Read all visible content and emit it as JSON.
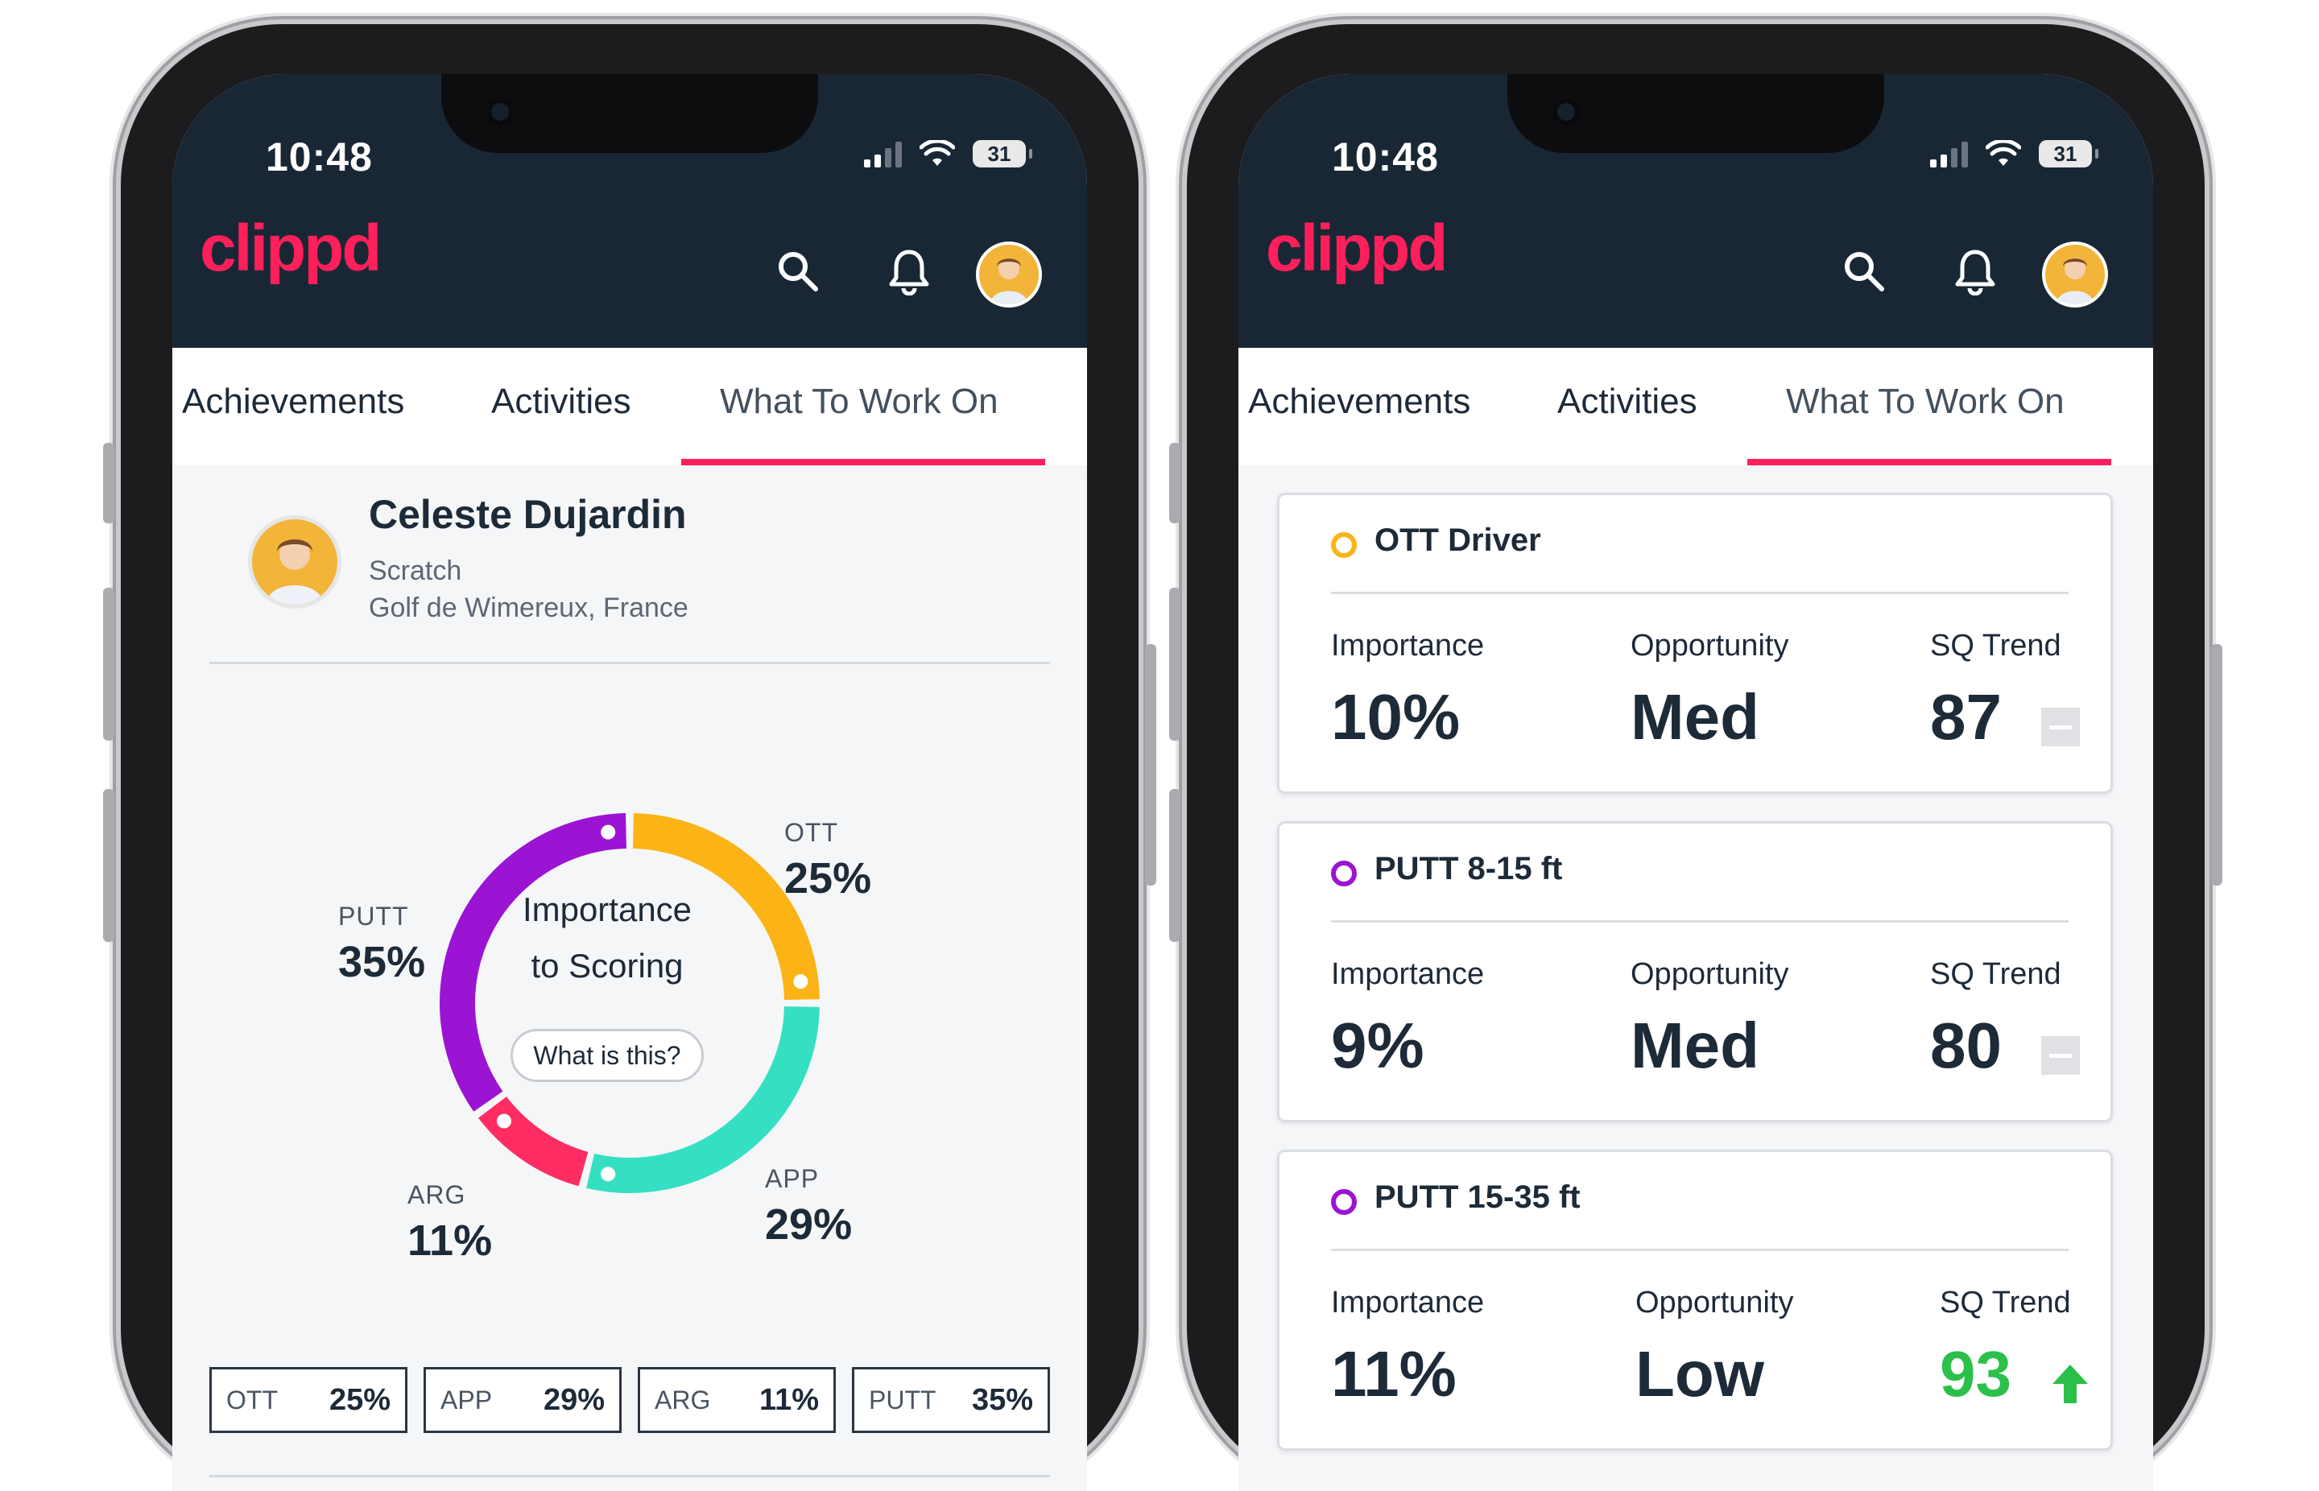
{
  "status_bar": {
    "time": "10:48",
    "battery": "31"
  },
  "app": {
    "logo": "clippd",
    "icons": {
      "search": "search-icon",
      "notifications": "bell-icon",
      "profile": "avatar"
    }
  },
  "tabs": [
    {
      "label": "Achievements"
    },
    {
      "label": "Activities"
    },
    {
      "label": "What To Work On",
      "active": true
    }
  ],
  "accent_color": "#ff1f5b",
  "profile": {
    "name": "Celeste Dujardin",
    "handicap": "Scratch",
    "club": "Golf de Wimereux, France"
  },
  "importance_chart": {
    "center_title_line1": "Importance",
    "center_title_line2": "to Scoring",
    "help_button": "What is this?",
    "segments": [
      {
        "label": "OTT",
        "value": "25%",
        "percent": 25,
        "color": "#fbb315"
      },
      {
        "label": "APP",
        "value": "29%",
        "percent": 29,
        "color": "#35e0c2"
      },
      {
        "label": "ARG",
        "value": "11%",
        "percent": 11,
        "color": "#ff2d63"
      },
      {
        "label": "PUTT",
        "value": "35%",
        "percent": 35,
        "color": "#9b14d3"
      }
    ]
  },
  "summary_pills": [
    {
      "label": "OTT",
      "value": "25%"
    },
    {
      "label": "APP",
      "value": "29%"
    },
    {
      "label": "ARG",
      "value": "11%"
    },
    {
      "label": "PUTT",
      "value": "35%"
    }
  ],
  "work_cards": [
    {
      "title": "OTT Driver",
      "dot_color": "#fbb315",
      "importance_label": "Importance",
      "importance": "10%",
      "opportunity_label": "Opportunity",
      "opportunity": "Med",
      "trend_label": "SQ Trend",
      "trend": "87",
      "trend_icon": "neutral-trend-icon",
      "trend_color": "#1d2a38"
    },
    {
      "title": "PUTT 8-15 ft",
      "dot_color": "#9b14d3",
      "importance_label": "Importance",
      "importance": "9%",
      "opportunity_label": "Opportunity",
      "opportunity": "Med",
      "trend_label": "SQ Trend",
      "trend": "80",
      "trend_icon": "neutral-trend-icon",
      "trend_color": "#1d2a38"
    },
    {
      "title": "PUTT 15-35 ft",
      "dot_color": "#9b14d3",
      "importance_label": "Importance",
      "importance": "11%",
      "opportunity_label": "Opportunity",
      "opportunity": "Low",
      "trend_label": "SQ Trend",
      "trend": "93",
      "trend_icon": "up-arrow-icon",
      "trend_color": "#2bc04a"
    }
  ]
}
